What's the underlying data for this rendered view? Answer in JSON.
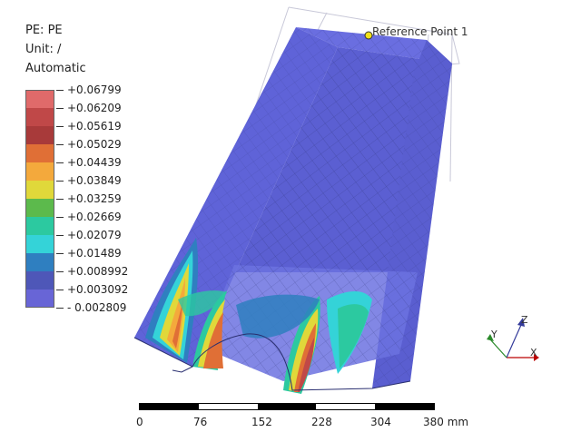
{
  "header": {
    "variable": "PE: PE",
    "unit": "Unit: /",
    "mode": "Automatic"
  },
  "legend": {
    "colors": [
      "#e06a6a",
      "#c04848",
      "#a83a3a",
      "#e06f36",
      "#f4a93c",
      "#e0d83a",
      "#5cba4c",
      "#2cc9a0",
      "#34d3d8",
      "#2f7fc0",
      "#4e57b8",
      "#6865d6"
    ],
    "labels": [
      "+0.06799",
      "+0.06209",
      "+0.05619",
      "+0.05029",
      "+0.04439",
      "+0.03849",
      "+0.03259",
      "+0.02669",
      "+0.02079",
      "+0.01489",
      "+0.008992",
      "+0.003092",
      "- 0.002809"
    ]
  },
  "reference_point": "Reference Point 1",
  "scale": {
    "labels": [
      "0",
      "76",
      "152",
      "228",
      "304",
      "380 mm"
    ]
  },
  "axes": {
    "x": "X",
    "y": "Y",
    "z": "Z"
  }
}
